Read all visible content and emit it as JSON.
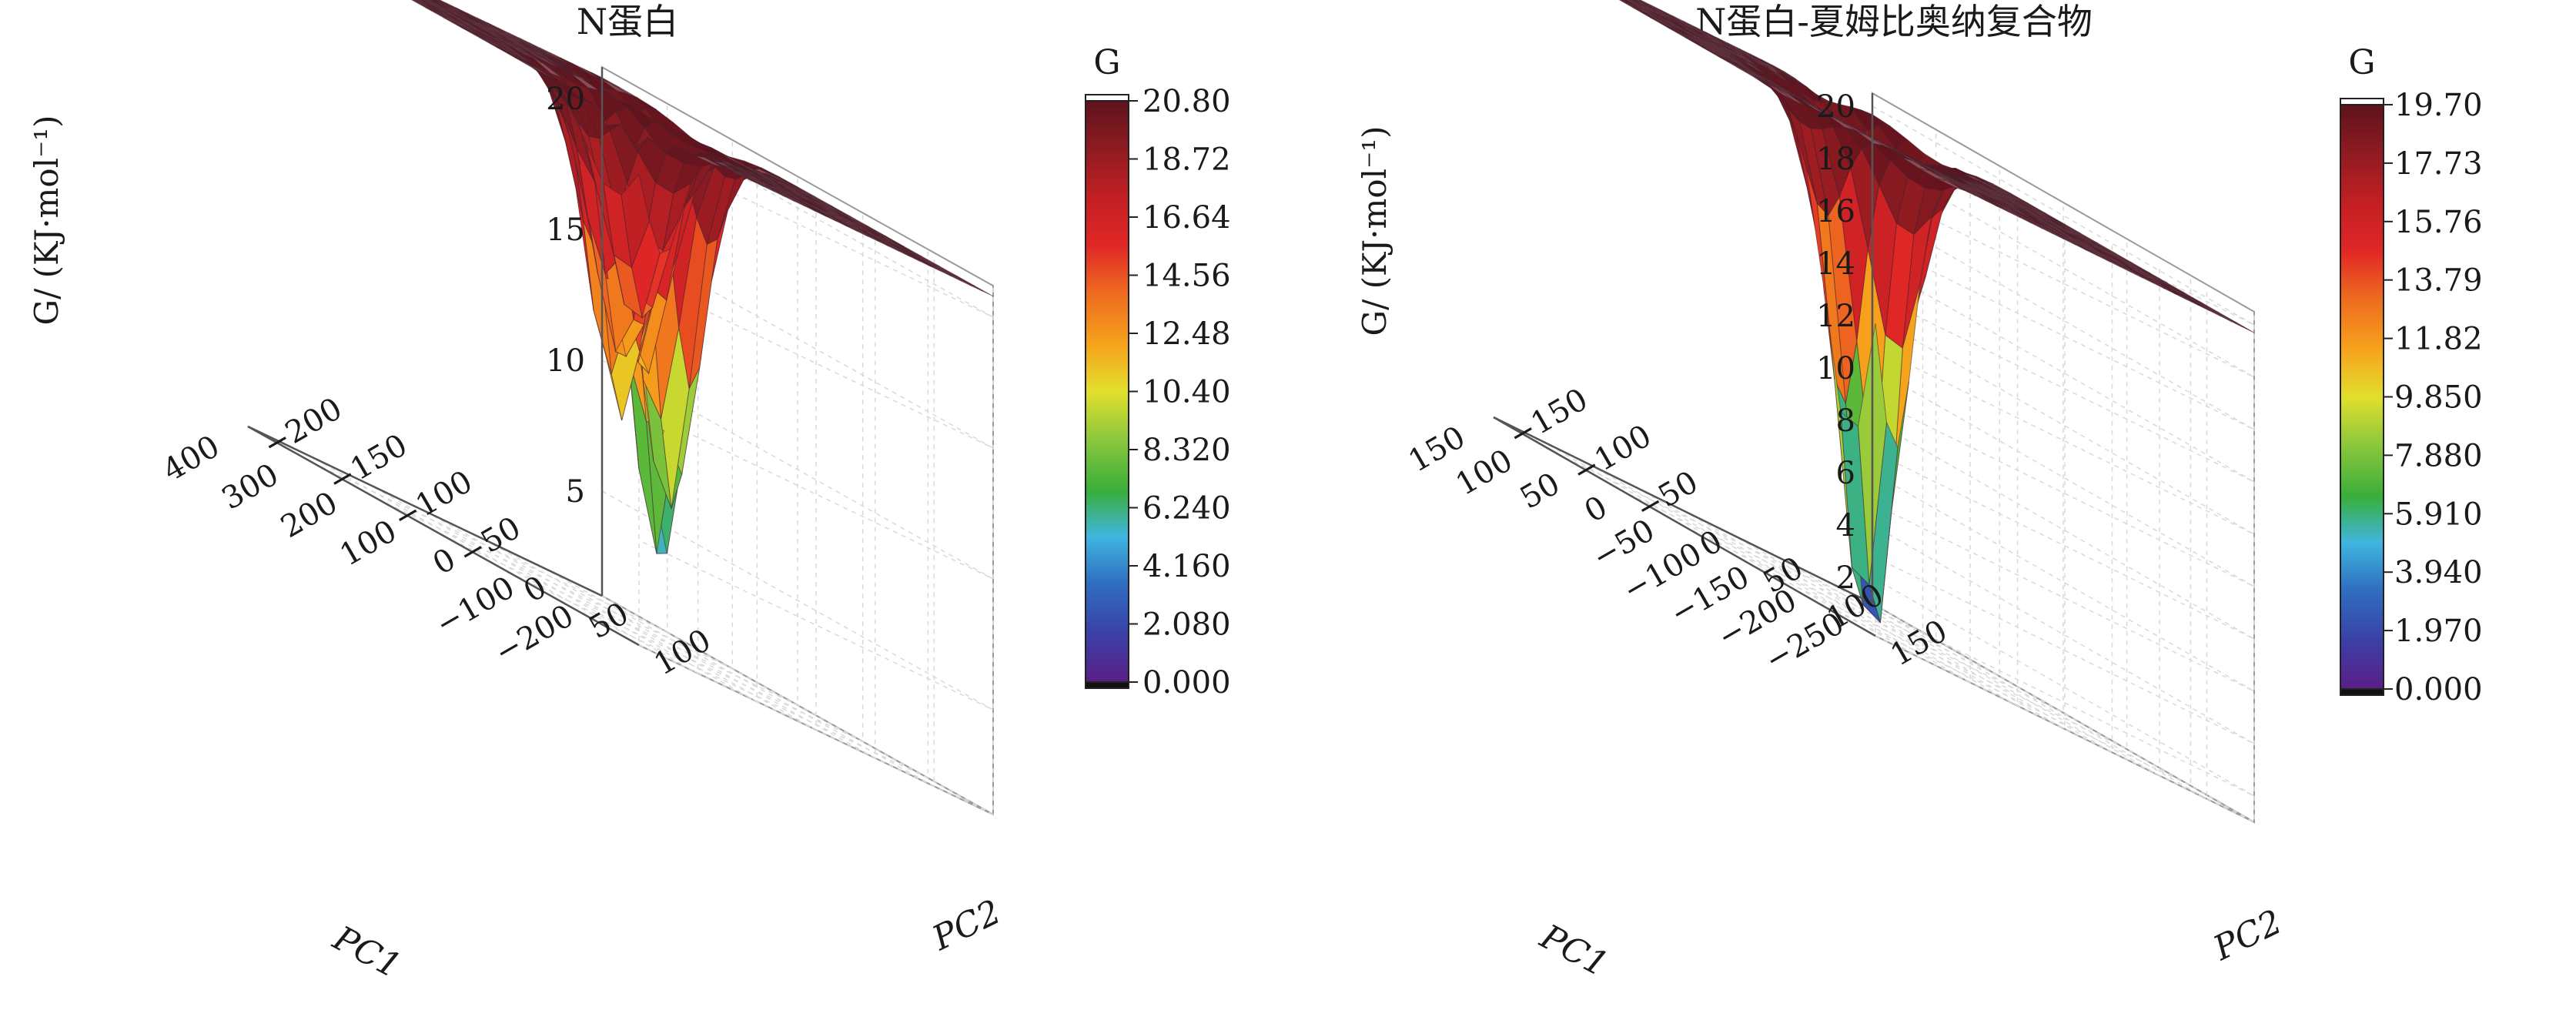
{
  "chart_data": [
    {
      "type": "surface3d",
      "title": "N蛋白",
      "zlabel": "G/ (KJ·mol⁻¹)",
      "xlabel": "PC1",
      "ylabel": "PC2",
      "x_ticks": [
        "−200",
        "−100",
        "0",
        "100",
        "200",
        "300",
        "400"
      ],
      "y_ticks": [
        "−200",
        "−150",
        "−100",
        "−50",
        "0",
        "50",
        "100"
      ],
      "z_ticks": [
        "5",
        "10",
        "15",
        "20"
      ],
      "xlim": [
        -200,
        400
      ],
      "ylim": [
        -200,
        100
      ],
      "zlim": [
        1,
        21.2
      ],
      "colorbar": {
        "title": "G",
        "ticks": [
          "20.80",
          "18.72",
          "16.64",
          "14.56",
          "12.48",
          "10.40",
          "8.320",
          "6.240",
          "4.160",
          "2.080",
          "0.000"
        ],
        "min": 0,
        "max": 20.8
      },
      "plateau": 20.8,
      "minima": [
        {
          "x": -120,
          "y": -120,
          "g": 3.2
        },
        {
          "x": -80,
          "y": -95,
          "g": 5.6
        },
        {
          "x": 90,
          "y": -40,
          "g": 10.5
        },
        {
          "x": 190,
          "y": -10,
          "g": 8.8
        },
        {
          "x": 250,
          "y": 20,
          "g": 11.0
        },
        {
          "x": 360,
          "y": 80,
          "g": 13.0
        }
      ]
    },
    {
      "type": "surface3d",
      "title": "N蛋白-夏姆比奥纳复合物",
      "zlabel": "G/ (KJ·mol⁻¹)",
      "xlabel": "PC1",
      "ylabel": "PC2",
      "x_ticks": [
        "−250",
        "−200",
        "−150",
        "−100",
        "−50",
        "0",
        "50",
        "100",
        "150"
      ],
      "y_ticks": [
        "−150",
        "−100",
        "−50",
        "0",
        "50",
        "100",
        "150"
      ],
      "z_ticks": [
        "2",
        "4",
        "6",
        "8",
        "10",
        "12",
        "14",
        "16",
        "18",
        "20"
      ],
      "xlim": [
        -250,
        150
      ],
      "ylim": [
        -150,
        150
      ],
      "zlim": [
        1,
        20.5
      ],
      "colorbar": {
        "title": "G",
        "ticks": [
          "19.70",
          "17.73",
          "15.76",
          "13.79",
          "11.82",
          "9.850",
          "7.880",
          "5.910",
          "3.940",
          "1.970",
          "0.000"
        ],
        "min": 0,
        "max": 19.7
      },
      "plateau": 19.7,
      "minima": [
        {
          "x": -200,
          "y": -100,
          "g": 9.5
        },
        {
          "x": -130,
          "y": -60,
          "g": 8.6
        },
        {
          "x": -60,
          "y": -20,
          "g": 8.3
        },
        {
          "x": 0,
          "y": 20,
          "g": 9.5
        },
        {
          "x": 130,
          "y": 130,
          "g": 0.2
        }
      ]
    }
  ]
}
